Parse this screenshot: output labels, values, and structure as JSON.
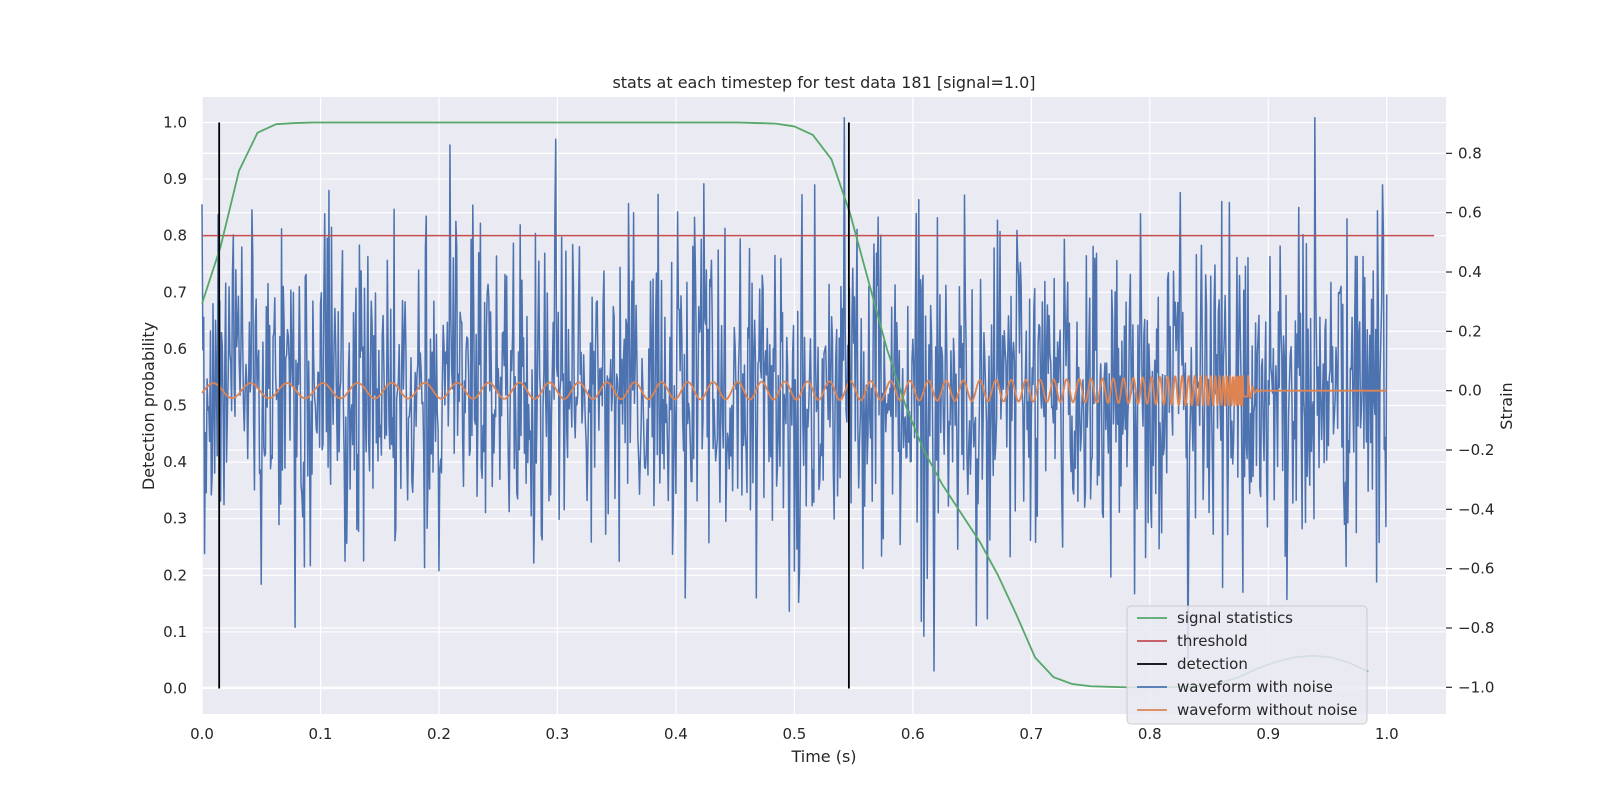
{
  "chart_data": {
    "type": "line",
    "title": "stats at each timestep for test data 181 [signal=1.0]",
    "xlabel": "Time (s)",
    "ylabel": "Detection probability",
    "y2label": "Strain",
    "xlim": [
      0.0,
      1.05
    ],
    "ylim": [
      -0.045,
      1.045
    ],
    "y2lim": [
      -1.09,
      0.99
    ],
    "x_ticks": [
      0.0,
      0.1,
      0.2,
      0.3,
      0.4,
      0.5,
      0.6,
      0.7,
      0.8,
      0.9,
      1.0
    ],
    "x_tick_labels": [
      "0.0",
      "0.1",
      "0.2",
      "0.3",
      "0.4",
      "0.5",
      "0.6",
      "0.7",
      "0.8",
      "0.9",
      "1.0"
    ],
    "y_ticks": [
      0.0,
      0.1,
      0.2,
      0.3,
      0.4,
      0.5,
      0.6,
      0.7,
      0.8,
      0.9,
      1.0
    ],
    "y_tick_labels": [
      "0.0",
      "0.1",
      "0.2",
      "0.3",
      "0.4",
      "0.5",
      "0.6",
      "0.7",
      "0.8",
      "0.9",
      "1.0"
    ],
    "y2_ticks": [
      -1.0,
      -0.8,
      -0.6,
      -0.4,
      -0.2,
      0.0,
      0.2,
      0.4,
      0.6,
      0.8
    ],
    "y2_tick_labels": [
      "−1.0",
      "−0.8",
      "−0.6",
      "−0.4",
      "−0.2",
      "0.0",
      "0.2",
      "0.4",
      "0.6",
      "0.8"
    ],
    "grid": true,
    "legend_position": "lower-right",
    "series": [
      {
        "name": "signal statistics",
        "axis": "left",
        "color": "#55a868",
        "x": [
          0.0,
          0.0156,
          0.0313,
          0.0469,
          0.0625,
          0.0781,
          0.0938,
          0.1094,
          0.125,
          0.1406,
          0.1563,
          0.1719,
          0.1875,
          0.2031,
          0.2188,
          0.2344,
          0.25,
          0.2656,
          0.2813,
          0.2969,
          0.3125,
          0.3281,
          0.3438,
          0.3594,
          0.375,
          0.3906,
          0.4063,
          0.4219,
          0.4375,
          0.4531,
          0.4688,
          0.4844,
          0.5,
          0.5156,
          0.5313,
          0.5469,
          0.5625,
          0.5781,
          0.5938,
          0.6094,
          0.625,
          0.6406,
          0.6563,
          0.6719,
          0.6875,
          0.7031,
          0.7188,
          0.7344,
          0.75,
          0.7656,
          0.7813,
          0.7969,
          0.8125,
          0.8281,
          0.8438,
          0.8594,
          0.875,
          0.8906,
          0.9063,
          0.9219,
          0.9375,
          0.9531,
          0.9688,
          0.9844
        ],
        "values": [
          0.68,
          0.78,
          0.915,
          0.982,
          0.997,
          0.999,
          1.0,
          1.0,
          1.0,
          1.0,
          1.0,
          1.0,
          1.0,
          1.0,
          1.0,
          1.0,
          1.0,
          1.0,
          1.0,
          1.0,
          1.0,
          1.0,
          1.0,
          1.0,
          1.0,
          1.0,
          1.0,
          1.0,
          1.0,
          1.0,
          0.999,
          0.998,
          0.993,
          0.978,
          0.935,
          0.84,
          0.72,
          0.6,
          0.5,
          0.42,
          0.36,
          0.31,
          0.26,
          0.2,
          0.13,
          0.055,
          0.02,
          0.008,
          0.004,
          0.003,
          0.002,
          0.002,
          0.002,
          0.003,
          0.005,
          0.01,
          0.02,
          0.035,
          0.047,
          0.055,
          0.058,
          0.055,
          0.045,
          0.03
        ]
      },
      {
        "name": "threshold",
        "axis": "left",
        "color": "#c44e52",
        "x": [
          0.0,
          1.04
        ],
        "values": [
          0.8,
          0.8
        ]
      },
      {
        "name": "detection",
        "axis": "left",
        "color": "#000000",
        "x": [
          0.0145,
          0.546
        ],
        "values": [
          1.0,
          1.0
        ]
      },
      {
        "name": "waveform with noise",
        "axis": "right",
        "color": "#4c72b0",
        "x_range": [
          0.0,
          1.0
        ],
        "sample_count": 2048,
        "values": []
      },
      {
        "name": "waveform without noise",
        "axis": "right",
        "color": "#dd8452",
        "x_range": [
          0.0,
          1.0
        ],
        "amplitude_range": [
          -0.05,
          0.05
        ],
        "merger_time": 0.883,
        "values": []
      }
    ]
  }
}
